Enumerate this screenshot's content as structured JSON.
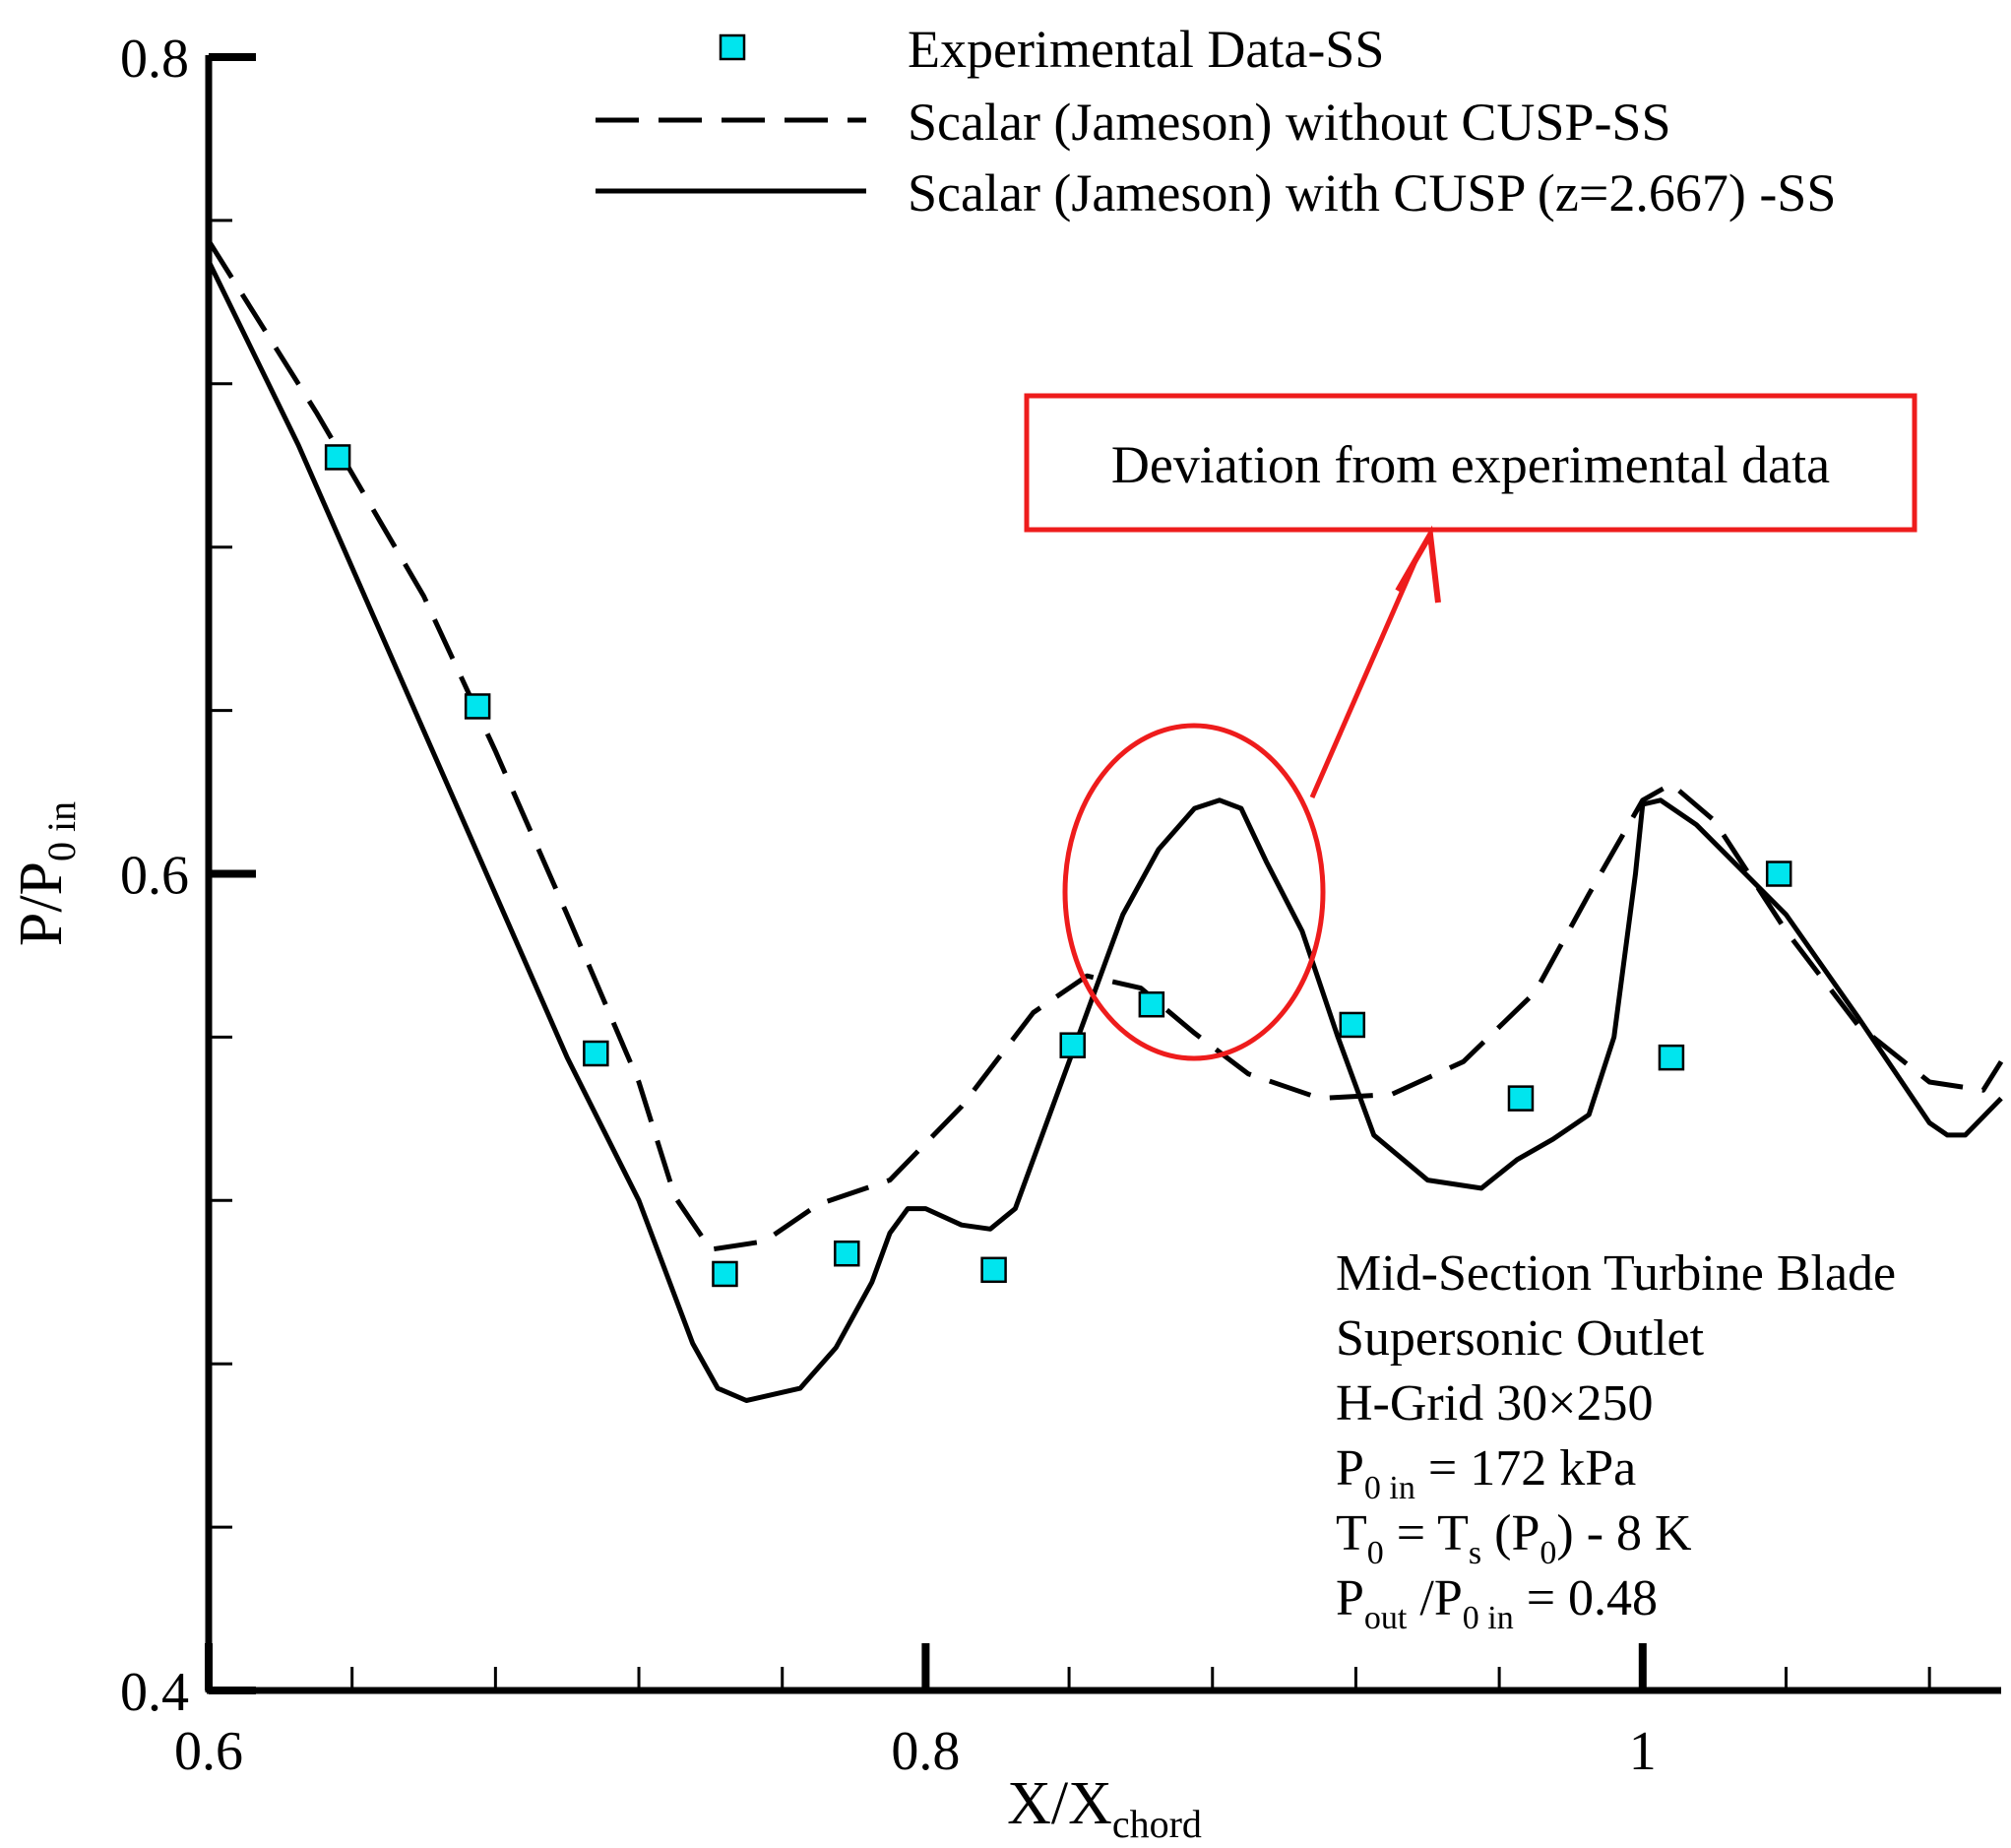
{
  "chart_data": {
    "type": "line",
    "title": "",
    "xlabel": {
      "main": "X/X",
      "sub": "chord"
    },
    "ylabel": {
      "main": "P/P",
      "sub": "0 in"
    },
    "xlim": [
      0.6,
      1.1
    ],
    "ylim": [
      0.4,
      0.8
    ],
    "x_major_ticks": [
      0.6,
      0.8,
      1.0
    ],
    "x_tick_labels": [
      "0.6",
      "0.8",
      "1"
    ],
    "x_minor_ticks": [
      0.64,
      0.68,
      0.72,
      0.76,
      0.84,
      0.88,
      0.92,
      0.96,
      1.04,
      1.08
    ],
    "y_major_ticks": [
      0.4,
      0.6,
      0.8
    ],
    "y_tick_labels": [
      "0.4",
      "0.6",
      "0.8"
    ],
    "y_minor_ticks": [
      0.44,
      0.48,
      0.52,
      0.56,
      0.64,
      0.68,
      0.72,
      0.76
    ],
    "legend_position": "top-right",
    "series": [
      {
        "name": "Experimental Data-SS",
        "style": "markers",
        "marker_color": "#00e5ee",
        "x": [
          0.636,
          0.675,
          0.708,
          0.744,
          0.778,
          0.819,
          0.841,
          0.863,
          0.919,
          0.966,
          1.008,
          1.038
        ],
        "y": [
          0.702,
          0.641,
          0.556,
          0.502,
          0.507,
          0.503,
          0.558,
          0.568,
          0.563,
          0.545,
          0.555,
          0.6
        ]
      },
      {
        "name": "Scalar (Jameson) without CUSP-SS",
        "style": "dashed",
        "x": [
          0.6,
          0.63,
          0.66,
          0.68,
          0.7,
          0.72,
          0.73,
          0.74,
          0.755,
          0.77,
          0.79,
          0.81,
          0.83,
          0.845,
          0.86,
          0.875,
          0.89,
          0.91,
          0.93,
          0.95,
          0.97,
          0.985,
          1.0,
          1.008,
          1.02,
          1.04,
          1.06,
          1.08,
          1.095,
          1.1
        ],
        "y": [
          0.755,
          0.713,
          0.668,
          0.63,
          0.59,
          0.549,
          0.521,
          0.508,
          0.51,
          0.519,
          0.525,
          0.543,
          0.566,
          0.575,
          0.572,
          0.561,
          0.551,
          0.545,
          0.546,
          0.554,
          0.571,
          0.595,
          0.618,
          0.622,
          0.613,
          0.586,
          0.563,
          0.549,
          0.547,
          0.554
        ]
      },
      {
        "name": "Scalar (Jameson) with CUSP (z=2.667) -SS",
        "style": "solid",
        "x": [
          0.6,
          0.625,
          0.65,
          0.675,
          0.7,
          0.72,
          0.735,
          0.742,
          0.75,
          0.765,
          0.775,
          0.785,
          0.79,
          0.795,
          0.8,
          0.81,
          0.818,
          0.825,
          0.84,
          0.85,
          0.855,
          0.865,
          0.875,
          0.882,
          0.888,
          0.895,
          0.905,
          0.915,
          0.925,
          0.94,
          0.955,
          0.965,
          0.975,
          0.985,
          0.992,
          0.998,
          1.0,
          1.005,
          1.015,
          1.04,
          1.06,
          1.08,
          1.085,
          1.09,
          1.1
        ],
        "y": [
          0.75,
          0.705,
          0.655,
          0.605,
          0.555,
          0.52,
          0.485,
          0.474,
          0.471,
          0.474,
          0.484,
          0.5,
          0.512,
          0.518,
          0.518,
          0.514,
          0.513,
          0.518,
          0.554,
          0.578,
          0.59,
          0.606,
          0.616,
          0.618,
          0.616,
          0.603,
          0.586,
          0.56,
          0.536,
          0.525,
          0.523,
          0.53,
          0.535,
          0.541,
          0.56,
          0.6,
          0.617,
          0.618,
          0.612,
          0.59,
          0.565,
          0.539,
          0.536,
          0.536,
          0.545
        ]
      }
    ],
    "annotations": {
      "callout_text": "Deviation from experimental data",
      "info_lines": [
        {
          "main": "Mid-Section Turbine Blade"
        },
        {
          "main": "Supersonic Outlet"
        },
        {
          "main": "H-Grid 30×250"
        },
        {
          "parts": [
            {
              "t": "P"
            },
            {
              "t": "0 in",
              "sub": true
            },
            {
              "t": " = 172 kPa"
            }
          ]
        },
        {
          "parts": [
            {
              "t": "T"
            },
            {
              "t": "0",
              "sub": true
            },
            {
              "t": " = T"
            },
            {
              "t": "s",
              "sub": true
            },
            {
              "t": " (P"
            },
            {
              "t": "0",
              "sub": true
            },
            {
              "t": ") - 8 K"
            }
          ]
        },
        {
          "parts": [
            {
              "t": "P"
            },
            {
              "t": "out",
              "sub": true
            },
            {
              "t": " /P"
            },
            {
              "t": "0 in",
              "sub": true
            },
            {
              "t": " = 0.48"
            }
          ]
        }
      ]
    },
    "colors": {
      "axis": "#000000",
      "line": "#000000",
      "marker": "#00e5ee",
      "highlight": "#ee1c1c"
    }
  }
}
